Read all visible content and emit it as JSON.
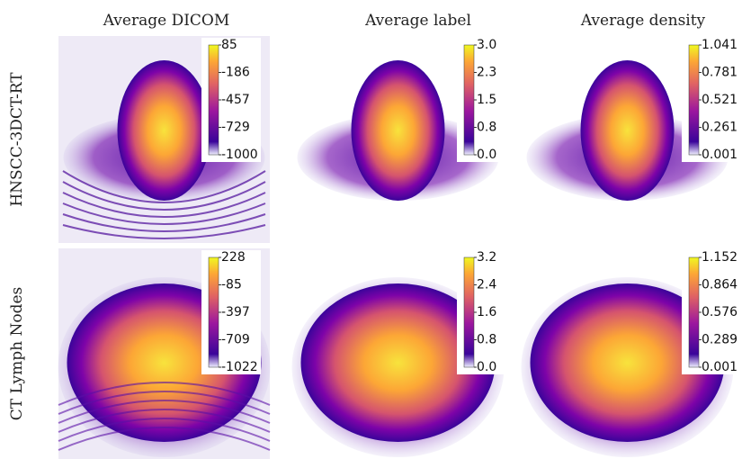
{
  "column_titles": [
    "Average DICOM",
    "Average label",
    "Average density"
  ],
  "rows": [
    {
      "label": "HNSCC-3DCT-RT",
      "colorbars": [
        [
          "85",
          "-186",
          "-457",
          "-729",
          "-1000"
        ],
        [
          "3.0",
          "2.3",
          "1.5",
          "0.8",
          "0.0"
        ],
        [
          "1.041",
          "0.781",
          "0.521",
          "0.261",
          "0.001"
        ]
      ]
    },
    {
      "label": "CT Lymph Nodes",
      "colorbars": [
        [
          "228",
          "-85",
          "-397",
          "-709",
          "-1022"
        ],
        [
          "3.2",
          "2.4",
          "1.6",
          "0.8",
          "0.0"
        ],
        [
          "1.152",
          "0.864",
          "0.576",
          "0.289",
          "0.001"
        ]
      ]
    }
  ]
}
